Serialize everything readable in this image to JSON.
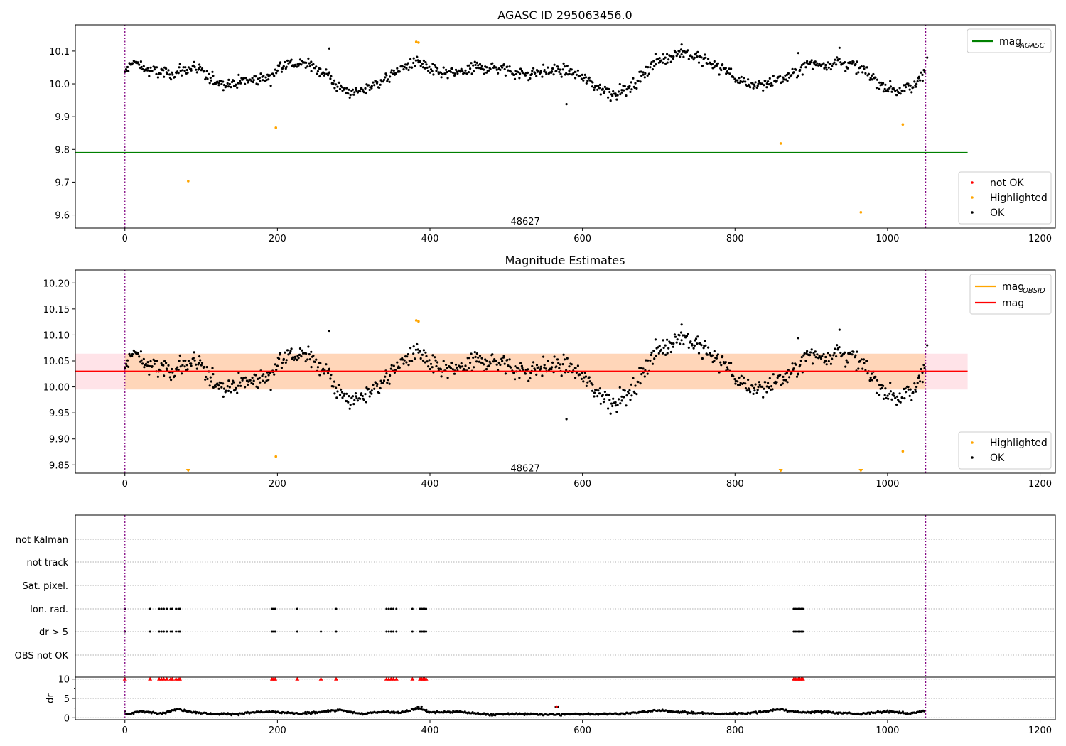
{
  "chart_data": [
    {
      "type": "scatter",
      "title": "AGASC ID 295063456.0",
      "xlim": [
        -65,
        1220
      ],
      "ylim": [
        9.56,
        10.18
      ],
      "xticks": [
        0,
        200,
        400,
        600,
        800,
        1000,
        1200
      ],
      "xtick_labels": [
        "0",
        "200",
        "400",
        "600",
        "800",
        "1000",
        "1200"
      ],
      "yticks": [
        9.6,
        9.7,
        9.8,
        9.9,
        10.0,
        10.1
      ],
      "ytick_labels": [
        "9.6",
        "9.7",
        "9.8",
        "9.9",
        "10.0",
        "10.1"
      ],
      "vlines": [
        0,
        1050
      ],
      "hline": {
        "y": 9.79,
        "x_range": [
          -65,
          1105
        ],
        "color": "#008000"
      },
      "annotation": {
        "text": "48627",
        "x": 525,
        "y": 9.575
      },
      "legend_top": [
        {
          "label_main": "mag",
          "label_sub": "AGASC",
          "kind": "line",
          "color": "#008000"
        }
      ],
      "legend_bottom": [
        {
          "label": "not OK",
          "kind": "dot",
          "color": "#ff0000"
        },
        {
          "label": "Highlighted",
          "kind": "dot",
          "color": "#ffa500"
        },
        {
          "label": "OK",
          "kind": "dot",
          "color": "#000000"
        }
      ],
      "highlighted_points": [
        [
          83,
          9.703
        ],
        [
          198,
          9.866
        ],
        [
          382,
          10.128
        ],
        [
          385,
          10.126
        ],
        [
          860,
          9.818
        ],
        [
          965,
          9.608
        ],
        [
          1020,
          9.876
        ]
      ],
      "ok_trend": [
        [
          0,
          10.03
        ],
        [
          10,
          10.07
        ],
        [
          30,
          10.04
        ],
        [
          60,
          10.03
        ],
        [
          90,
          10.05
        ],
        [
          110,
          10.02
        ],
        [
          130,
          10.0
        ],
        [
          160,
          10.01
        ],
        [
          190,
          10.02
        ],
        [
          205,
          10.06
        ],
        [
          240,
          10.06
        ],
        [
          265,
          10.03
        ],
        [
          280,
          9.99
        ],
        [
          300,
          9.97
        ],
        [
          320,
          9.99
        ],
        [
          345,
          10.02
        ],
        [
          365,
          10.05
        ],
        [
          385,
          10.07
        ],
        [
          400,
          10.04
        ],
        [
          430,
          10.03
        ],
        [
          460,
          10.05
        ],
        [
          490,
          10.05
        ],
        [
          520,
          10.03
        ],
        [
          560,
          10.04
        ],
        [
          580,
          10.04
        ],
        [
          600,
          10.02
        ],
        [
          620,
          9.99
        ],
        [
          640,
          9.97
        ],
        [
          665,
          9.99
        ],
        [
          690,
          10.06
        ],
        [
          710,
          10.08
        ],
        [
          730,
          10.1
        ],
        [
          760,
          10.07
        ],
        [
          790,
          10.04
        ],
        [
          810,
          10.0
        ],
        [
          840,
          10.0
        ],
        [
          870,
          10.02
        ],
        [
          895,
          10.06
        ],
        [
          920,
          10.06
        ],
        [
          935,
          10.07
        ],
        [
          950,
          10.06
        ],
        [
          970,
          10.04
        ],
        [
          990,
          10.0
        ],
        [
          1010,
          9.98
        ],
        [
          1035,
          9.99
        ],
        [
          1050,
          10.05
        ]
      ],
      "ok_n": 900,
      "ok_scatter_sd": 0.018,
      "outliers": [
        [
          579,
          9.938
        ],
        [
          268,
          10.108
        ],
        [
          730,
          10.12
        ],
        [
          937,
          10.11
        ],
        [
          883,
          10.094
        ],
        [
          1052,
          10.08
        ]
      ]
    },
    {
      "type": "scatter",
      "title": "Magnitude Estimates",
      "xlim": [
        -65,
        1220
      ],
      "ylim": [
        9.834,
        10.225
      ],
      "xticks": [
        0,
        200,
        400,
        600,
        800,
        1000,
        1200
      ],
      "xtick_labels": [
        "0",
        "200",
        "400",
        "600",
        "800",
        "1000",
        "1200"
      ],
      "yticks": [
        9.85,
        9.9,
        9.95,
        10.0,
        10.05,
        10.1,
        10.15,
        10.2
      ],
      "ytick_labels": [
        "9.85",
        "9.90",
        "9.95",
        "10.00",
        "10.05",
        "10.10",
        "10.15",
        "10.20"
      ],
      "vlines": [
        0,
        1050
      ],
      "band_outer": {
        "y": [
          9.995,
          10.064
        ],
        "x_range": [
          -65,
          1105
        ],
        "color": "#ffc0cb"
      },
      "band_inner": {
        "y": [
          9.995,
          10.064
        ],
        "x_range": [
          0,
          1050
        ],
        "color": "#ffa500"
      },
      "hline": {
        "y": 10.03,
        "x_range": [
          -65,
          1105
        ],
        "color": "#ff0000"
      },
      "annotation": {
        "text": "48627",
        "x": 525,
        "y": 9.84
      },
      "legend_top": [
        {
          "label_main": "mag",
          "label_sub": "OBSID",
          "kind": "line",
          "color": "#ffa500"
        },
        {
          "label_main": "mag",
          "label_sub": "",
          "kind": "line",
          "color": "#ff0000"
        }
      ],
      "legend_bottom": [
        {
          "label": "Highlighted",
          "kind": "dot",
          "color": "#ffa500"
        },
        {
          "label": "OK",
          "kind": "dot",
          "color": "#000000"
        }
      ],
      "highlighted_points": [
        [
          198,
          9.866
        ],
        [
          382,
          10.128
        ],
        [
          385,
          10.126
        ],
        [
          1020,
          9.876
        ]
      ],
      "lower_markers": [
        83,
        860,
        965
      ],
      "outliers": [
        [
          579,
          9.938
        ],
        [
          268,
          10.108
        ],
        [
          730,
          10.12
        ],
        [
          937,
          10.11
        ],
        [
          883,
          10.094
        ],
        [
          1052,
          10.08
        ]
      ]
    },
    {
      "type": "scatter",
      "title": "",
      "xlim": [
        -65,
        1220
      ],
      "xticks": [
        0,
        200,
        400,
        600,
        800,
        1000,
        1200
      ],
      "xtick_labels": [
        "0",
        "200",
        "400",
        "600",
        "800",
        "1000",
        "1200"
      ],
      "vlines": [
        0,
        1050
      ],
      "flag_rows": [
        "not Kalman",
        "not track",
        "Sat. pixel.",
        "Ion. rad.",
        "dr > 5",
        "OBS not OK"
      ],
      "flag_points": {
        "Ion. rad.": [
          0,
          33,
          45,
          48,
          51,
          55,
          60,
          62,
          67,
          70,
          72,
          193,
          195,
          197,
          226,
          277,
          343,
          346,
          349,
          352,
          356,
          377,
          387,
          389,
          391,
          393,
          395,
          877,
          879,
          881,
          883,
          885,
          887,
          889
        ],
        "dr > 5": [
          0,
          33,
          45,
          48,
          51,
          55,
          60,
          62,
          67,
          70,
          72,
          193,
          195,
          197,
          226,
          257,
          277,
          343,
          346,
          349,
          352,
          356,
          377,
          387,
          389,
          391,
          393,
          395,
          877,
          879,
          881,
          883,
          885,
          887,
          889
        ]
      },
      "dr_ylim": [
        -0.5,
        10.5
      ],
      "dr_yticks": [
        0,
        5,
        10
      ],
      "dr_ytick_labels": [
        "0",
        "5",
        "10"
      ],
      "ylabel": "dr",
      "dr_red_at_10": [
        0,
        33,
        45,
        48,
        51,
        55,
        60,
        62,
        67,
        70,
        72,
        193,
        195,
        197,
        226,
        257,
        277,
        343,
        346,
        349,
        352,
        356,
        377,
        387,
        389,
        391,
        393,
        395,
        877,
        879,
        881,
        883,
        885,
        887,
        889
      ],
      "dr_trend": [
        [
          0,
          0.8
        ],
        [
          20,
          1.6
        ],
        [
          50,
          1.2
        ],
        [
          70,
          2.2
        ],
        [
          90,
          1.5
        ],
        [
          110,
          1.0
        ],
        [
          150,
          1.0
        ],
        [
          175,
          1.5
        ],
        [
          200,
          1.4
        ],
        [
          230,
          1.0
        ],
        [
          255,
          1.5
        ],
        [
          280,
          2.0
        ],
        [
          310,
          1.0
        ],
        [
          340,
          1.6
        ],
        [
          360,
          1.3
        ],
        [
          385,
          2.5
        ],
        [
          400,
          1.4
        ],
        [
          440,
          1.5
        ],
        [
          480,
          0.8
        ],
        [
          520,
          1.0
        ],
        [
          560,
          0.8
        ],
        [
          600,
          1.0
        ],
        [
          630,
          1.0
        ],
        [
          660,
          1.1
        ],
        [
          700,
          1.9
        ],
        [
          740,
          1.3
        ],
        [
          780,
          1.0
        ],
        [
          820,
          1.2
        ],
        [
          860,
          2.2
        ],
        [
          880,
          1.4
        ],
        [
          920,
          1.5
        ],
        [
          960,
          1.0
        ],
        [
          1000,
          1.6
        ],
        [
          1030,
          1.1
        ],
        [
          1050,
          1.8
        ]
      ],
      "dr_outliers": [
        [
          565,
          2.8
        ],
        [
          568,
          2.9
        ],
        [
          389,
          2.9
        ],
        [
          385,
          2.8
        ]
      ]
    }
  ]
}
